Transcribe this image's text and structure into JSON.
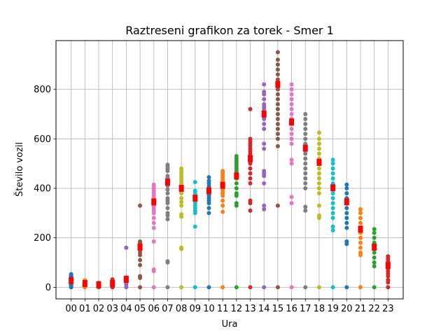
{
  "chart_data": {
    "type": "scatter",
    "title": "Raztreseni grafikon za torek - Smer 1",
    "xlabel": "Ura",
    "ylabel": "Število vozil",
    "categories": [
      "00",
      "01",
      "02",
      "03",
      "04",
      "05",
      "06",
      "07",
      "08",
      "09",
      "10",
      "11",
      "12",
      "13",
      "14",
      "15",
      "16",
      "17",
      "18",
      "19",
      "20",
      "21",
      "22",
      "23"
    ],
    "xlim": [
      -1.1,
      24.1
    ],
    "ylim": [
      -47,
      997
    ],
    "yticks": [
      0,
      200,
      400,
      600,
      800
    ],
    "grid": true,
    "mean_color": "#ff0000",
    "palette": [
      "#1f77b4",
      "#ff7f0e",
      "#2ca02c",
      "#d62728",
      "#9467bd",
      "#8c564b",
      "#e377c2",
      "#7f7f7f",
      "#bcbd22",
      "#17becf"
    ],
    "series": [
      {
        "x": "00",
        "mean": 27,
        "values": [
          0,
          3,
          6,
          10,
          13,
          16,
          18,
          20,
          22,
          24,
          26,
          28,
          30,
          32,
          34,
          36,
          38,
          40,
          42,
          44,
          46,
          50,
          53
        ]
      },
      {
        "x": "01",
        "mean": 15,
        "values": [
          0,
          4,
          6,
          8,
          10,
          12,
          14,
          16,
          18,
          20,
          22,
          25,
          28
        ]
      },
      {
        "x": "02",
        "mean": 10,
        "values": [
          0,
          2,
          4,
          6,
          8,
          10,
          12,
          14,
          16,
          18
        ]
      },
      {
        "x": "03",
        "mean": 15,
        "values": [
          0,
          3,
          6,
          8,
          10,
          12,
          14,
          16,
          18,
          20,
          22,
          25,
          28,
          32
        ]
      },
      {
        "x": "04",
        "mean": 32,
        "values": [
          0,
          10,
          18,
          24,
          28,
          30,
          32,
          34,
          36,
          38,
          40,
          160
        ]
      },
      {
        "x": "05",
        "mean": 162,
        "values": [
          0,
          38,
          45,
          90,
          110,
          130,
          140,
          150,
          155,
          160,
          165,
          170,
          175,
          180,
          185,
          330
        ]
      },
      {
        "x": "06",
        "mean": 345,
        "values": [
          0,
          65,
          72,
          185,
          240,
          260,
          280,
          300,
          310,
          320,
          330,
          340,
          350,
          360,
          370,
          380,
          390,
          400,
          410,
          415
        ]
      },
      {
        "x": "07",
        "mean": 425,
        "values": [
          0,
          100,
          105,
          275,
          290,
          300,
          320,
          340,
          350,
          360,
          380,
          395,
          410,
          420,
          430,
          440,
          450,
          470,
          480,
          490,
          495
        ]
      },
      {
        "x": "08",
        "mean": 400,
        "values": [
          0,
          155,
          160,
          285,
          295,
          330,
          345,
          360,
          380,
          390,
          400,
          410,
          420,
          430,
          440,
          450,
          460,
          470,
          480
        ]
      },
      {
        "x": "09",
        "mean": 360,
        "values": [
          0,
          245,
          300,
          310,
          320,
          330,
          340,
          350,
          360,
          370,
          380,
          390,
          425
        ]
      },
      {
        "x": "10",
        "mean": 390,
        "values": [
          0,
          300,
          320,
          340,
          350,
          360,
          370,
          380,
          390,
          400,
          410,
          420,
          430,
          445
        ]
      },
      {
        "x": "11",
        "mean": 412,
        "values": [
          0,
          305,
          330,
          350,
          370,
          380,
          390,
          400,
          410,
          420,
          430,
          440,
          450,
          460,
          470
        ]
      },
      {
        "x": "12",
        "mean": 450,
        "values": [
          0,
          330,
          340,
          370,
          380,
          400,
          420,
          440,
          450,
          460,
          470,
          480,
          490,
          500,
          510,
          520,
          530
        ]
      },
      {
        "x": "13",
        "mean": 520,
        "values": [
          0,
          310,
          340,
          350,
          420,
          440,
          460,
          480,
          500,
          510,
          520,
          530,
          540,
          550,
          560,
          570,
          580,
          590,
          600,
          720
        ]
      },
      {
        "x": "14",
        "mean": 700,
        "values": [
          0,
          315,
          330,
          420,
          450,
          460,
          470,
          560,
          580,
          640,
          660,
          680,
          690,
          700,
          710,
          720,
          730,
          740,
          760,
          780,
          790,
          820
        ]
      },
      {
        "x": "15",
        "mean": 820,
        "values": [
          0,
          330,
          570,
          600,
          620,
          640,
          660,
          680,
          700,
          720,
          740,
          760,
          780,
          800,
          820,
          840,
          860,
          880,
          900,
          920,
          950
        ]
      },
      {
        "x": "16",
        "mean": 668,
        "values": [
          0,
          340,
          365,
          500,
          515,
          580,
          600,
          620,
          640,
          660,
          680,
          700,
          720,
          740,
          760,
          780,
          800,
          820
        ]
      },
      {
        "x": "17",
        "mean": 562,
        "values": [
          0,
          310,
          325,
          400,
          420,
          440,
          460,
          480,
          500,
          520,
          540,
          560,
          580,
          600,
          620,
          640,
          660,
          680,
          700
        ]
      },
      {
        "x": "18",
        "mean": 505,
        "values": [
          0,
          280,
          290,
          330,
          380,
          400,
          420,
          440,
          460,
          480,
          500,
          520,
          540,
          560,
          580,
          600,
          625
        ]
      },
      {
        "x": "19",
        "mean": 402,
        "values": [
          0,
          230,
          245,
          280,
          300,
          320,
          340,
          360,
          380,
          400,
          420,
          440,
          460,
          480,
          500,
          515
        ]
      },
      {
        "x": "20",
        "mean": 345,
        "values": [
          0,
          175,
          185,
          240,
          260,
          280,
          300,
          320,
          340,
          360,
          380,
          400,
          415
        ]
      },
      {
        "x": "21",
        "mean": 235,
        "values": [
          0,
          130,
          140,
          160,
          180,
          200,
          220,
          240,
          260,
          280,
          300,
          315
        ]
      },
      {
        "x": "22",
        "mean": 162,
        "values": [
          0,
          85,
          100,
          120,
          140,
          160,
          180,
          200,
          220,
          235
        ]
      },
      {
        "x": "23",
        "mean": 88,
        "values": [
          0,
          20,
          30,
          45,
          55,
          65,
          75,
          85,
          95,
          105,
          115,
          125
        ]
      }
    ]
  }
}
